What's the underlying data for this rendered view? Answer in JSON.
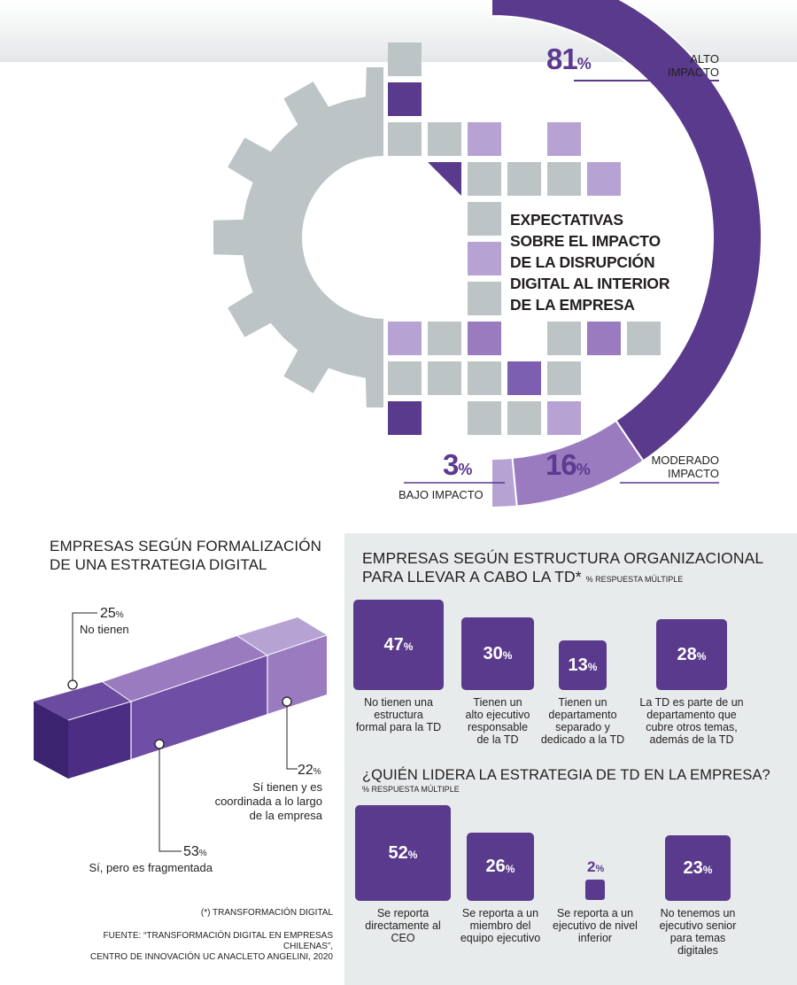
{
  "colors": {
    "dark_purple": "#5a3a8c",
    "mid_purple": "#9a7bc0",
    "light_purple": "#b7a2d4",
    "gray": "#bcc4c5",
    "panel": "#e8ebec"
  },
  "gear_section": {
    "title": "EXPECTATIVAS\nSOBRE EL IMPACTO\nDE LA DISRUPCIÓN\nDIGITAL AL INTERIOR\nDE LA EMPRESA",
    "high": {
      "value": "81",
      "unit": "%",
      "label_l1": "ALTO",
      "label_l2": "IMPACTO"
    },
    "moderate": {
      "value": "16",
      "unit": "%",
      "label_l1": "MODERADO",
      "label_l2": "IMPACTO"
    },
    "low": {
      "value": "3",
      "unit": "%",
      "label": "BAJO IMPACTO"
    }
  },
  "strategy_section": {
    "title_l1": "EMPRESAS SEGÚN  FORMALIZACIÓN",
    "title_l2": "DE UNA ESTRATEGIA DIGITAL",
    "no": {
      "value": "25",
      "unit": "%",
      "label": "No tienen"
    },
    "coordinated": {
      "value": "22",
      "unit": "%",
      "label_l1": "Sí tienen y es",
      "label_l2": "coordinada a lo largo",
      "label_l3": "de la empresa"
    },
    "fragmented": {
      "value": "53",
      "unit": "%",
      "label": "Sí, pero es fragmentada"
    },
    "footnote": "(*) TRANSFORMACIÓN DIGITAL",
    "source_l1": "FUENTE:  “TRANSFORMACIÓN DIGITAL EN EMPRESAS CHILENAS”,",
    "source_l2": "CENTRO DE INNOVACIÓN UC ANACLETO ANGELINI, 2020"
  },
  "structure_section": {
    "title_l1": "EMPRESAS SEGÚN ESTRUCTURA ORGANIZACIONAL",
    "title_l2": "PARA LLEVAR A CABO LA TD*",
    "note": "% RESPUESTA MÚLTIPLE",
    "items": [
      {
        "value": "47",
        "unit": "%",
        "l1": "No tienen una",
        "l2": "estructura",
        "l3": "formal para la TD",
        "l4": ""
      },
      {
        "value": "30",
        "unit": "%",
        "l1": "Tienen un",
        "l2": "alto ejecutivo",
        "l3": "responsable",
        "l4": "de la TD"
      },
      {
        "value": "13",
        "unit": "%",
        "l1": "Tienen un",
        "l2": "departamento",
        "l3": "separado y",
        "l4": "dedicado a la TD"
      },
      {
        "value": "28",
        "unit": "%",
        "l1": "La TD es parte de un",
        "l2": "departamento que",
        "l3": "cubre otros temas,",
        "l4": "además de la TD"
      }
    ]
  },
  "leader_section": {
    "title": "¿QUIÉN LIDERA LA ESTRATEGIA DE TD EN LA EMPRESA?",
    "note": "% RESPUESTA MÚLTIPLE",
    "items": [
      {
        "value": "52",
        "unit": "%",
        "l1": "Se reporta",
        "l2": "directamente al",
        "l3": "CEO",
        "l4": ""
      },
      {
        "value": "26",
        "unit": "%",
        "l1": "Se reporta a un",
        "l2": "miembro del",
        "l3": "equipo ejecutivo",
        "l4": ""
      },
      {
        "value": "2",
        "unit": "%",
        "l1": "Se reporta a un",
        "l2": "ejecutivo de nivel",
        "l3": "inferior",
        "l4": ""
      },
      {
        "value": "23",
        "unit": "%",
        "l1": "No tenemos un",
        "l2": "ejecutivo senior",
        "l3": "para temas",
        "l4": "digitales"
      }
    ]
  },
  "chart_data": [
    {
      "type": "pie",
      "title": "EXPECTATIVAS SOBRE EL IMPACTO DE LA DISRUPCIÓN DIGITAL AL INTERIOR DE LA EMPRESA",
      "categories": [
        "ALTO IMPACTO",
        "MODERADO IMPACTO",
        "BAJO IMPACTO"
      ],
      "values": [
        81,
        16,
        3
      ],
      "unit": "%"
    },
    {
      "type": "bar",
      "title": "EMPRESAS SEGÚN  FORMALIZACIÓN DE UNA ESTRATEGIA DIGITAL",
      "categories": [
        "No tienen",
        "Sí, pero es fragmentada",
        "Sí tienen y es coordinada a lo largo de la empresa"
      ],
      "values": [
        25,
        53,
        22
      ],
      "unit": "%",
      "stacked": true
    },
    {
      "type": "bar",
      "title": "EMPRESAS SEGÚN ESTRUCTURA ORGANIZACIONAL PARA LLEVAR A CABO LA TD*",
      "categories": [
        "No tienen una estructura formal para la TD",
        "Tienen un alto ejecutivo responsable de la TD",
        "Tienen un departamento separado y dedicado a la TD",
        "La TD es parte de un departamento que cubre otros temas, además de la TD"
      ],
      "values": [
        47,
        30,
        13,
        28
      ],
      "unit": "%"
    },
    {
      "type": "bar",
      "title": "¿QUIÉN LIDERA LA ESTRATEGIA DE TD EN LA EMPRESA?",
      "categories": [
        "Se reporta directamente al CEO",
        "Se reporta a un miembro del equipo ejecutivo",
        "Se reporta a un ejecutivo de nivel inferior",
        "No tenemos un ejecutivo senior para temas digitales"
      ],
      "values": [
        52,
        26,
        2,
        23
      ],
      "unit": "%"
    }
  ]
}
